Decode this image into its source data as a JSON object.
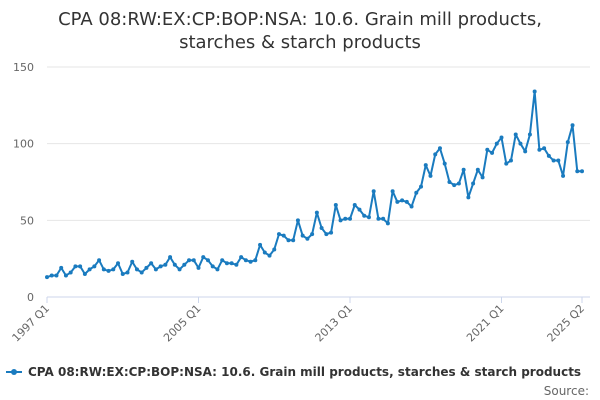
{
  "chart_data": {
    "type": "line",
    "title_line1": "CPA 08:RW:EX:CP:BOP:NSA: 10.6. Grain mill products,",
    "title_line2": "starches & starch products",
    "xlabel": "",
    "ylabel": "",
    "ylim": [
      0,
      150
    ],
    "y_ticks": [
      0,
      50,
      100,
      150
    ],
    "x_ticks": [
      {
        "label": "1997 Q1",
        "index": 0
      },
      {
        "label": "2005 Q1",
        "index": 32
      },
      {
        "label": "2013 Q1",
        "index": 64
      },
      {
        "label": "2021 Q1",
        "index": 96
      },
      {
        "label": "2025 Q2",
        "index": 113
      }
    ],
    "grid": true,
    "legend_position": "bottom",
    "series": [
      {
        "name": "CPA 08:RW:EX:CP:BOP:NSA: 10.6. Grain mill products, starches & starch products",
        "color": "#1a7bbf",
        "values": [
          13,
          14,
          14,
          19,
          14,
          16,
          20,
          20,
          15,
          18,
          20,
          24,
          18,
          17,
          18,
          22,
          15,
          16,
          23,
          18,
          16,
          19,
          22,
          18,
          20,
          21,
          26,
          21,
          18,
          21,
          24,
          24,
          19,
          26,
          24,
          20,
          18,
          24,
          22,
          22,
          21,
          26,
          24,
          23,
          24,
          34,
          29,
          27,
          31,
          41,
          40,
          37,
          37,
          50,
          40,
          38,
          41,
          55,
          45,
          41,
          42,
          60,
          50,
          51,
          51,
          60,
          57,
          53,
          52,
          69,
          51,
          51,
          48,
          69,
          62,
          63,
          62,
          59,
          68,
          72,
          86,
          79,
          93,
          97,
          87,
          75,
          73,
          74,
          83,
          65,
          74,
          83,
          78,
          96,
          94,
          100,
          104,
          87,
          89,
          106,
          100,
          95,
          106,
          134,
          96,
          97,
          92,
          89,
          89,
          79,
          101,
          112,
          82,
          82
        ]
      }
    ],
    "source_label": "Source:"
  }
}
